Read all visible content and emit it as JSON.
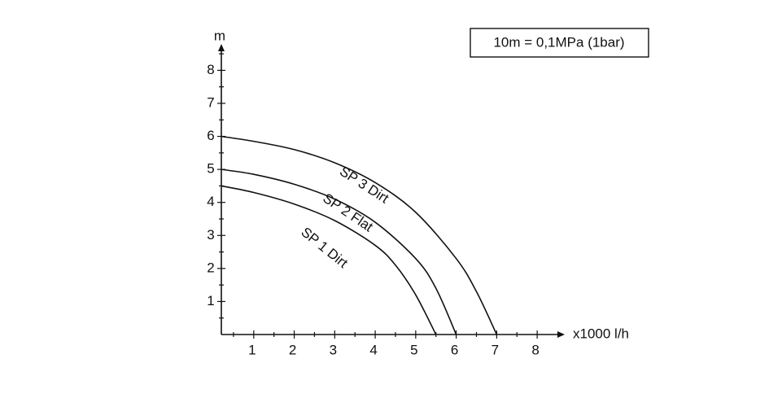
{
  "chart_data": {
    "type": "line",
    "x_label": "x1000 l/h",
    "y_label": "m",
    "annotation": "10m = 0,1MPa (1bar)",
    "xlim": [
      0.2,
      8.6
    ],
    "ylim": [
      0,
      8.7
    ],
    "xticks": [
      1,
      2,
      3,
      4,
      5,
      6,
      7,
      8
    ],
    "yticks": [
      1,
      2,
      3,
      4,
      5,
      6,
      7,
      8
    ],
    "xticks_minor": [
      0.5,
      1.5,
      2.5,
      3.5,
      4.5,
      5.5,
      6.5,
      7.5
    ],
    "yticks_minor": [
      0.5,
      1.5,
      2.5,
      3.5,
      4.5,
      5.5,
      6.5,
      7.5,
      8.5
    ],
    "series": [
      {
        "name": "SP 3 Dirt",
        "color": "#111111",
        "x": [
          0.2,
          1,
          2,
          3,
          4,
          5,
          6,
          6.5,
          7
        ],
        "values": [
          6.0,
          5.85,
          5.6,
          5.2,
          4.6,
          3.7,
          2.3,
          1.3,
          0
        ]
      },
      {
        "name": "SP 2 Flat",
        "color": "#111111",
        "x": [
          0.2,
          1,
          2,
          3,
          4,
          5,
          5.5,
          6
        ],
        "values": [
          5.0,
          4.85,
          4.55,
          4.1,
          3.4,
          2.3,
          1.4,
          0
        ]
      },
      {
        "name": "SP 1 Dirt",
        "color": "#111111",
        "x": [
          0.2,
          1,
          2,
          3,
          4,
          4.5,
          5,
          5.5
        ],
        "values": [
          4.5,
          4.3,
          3.95,
          3.45,
          2.7,
          2.1,
          1.2,
          0
        ]
      }
    ]
  }
}
